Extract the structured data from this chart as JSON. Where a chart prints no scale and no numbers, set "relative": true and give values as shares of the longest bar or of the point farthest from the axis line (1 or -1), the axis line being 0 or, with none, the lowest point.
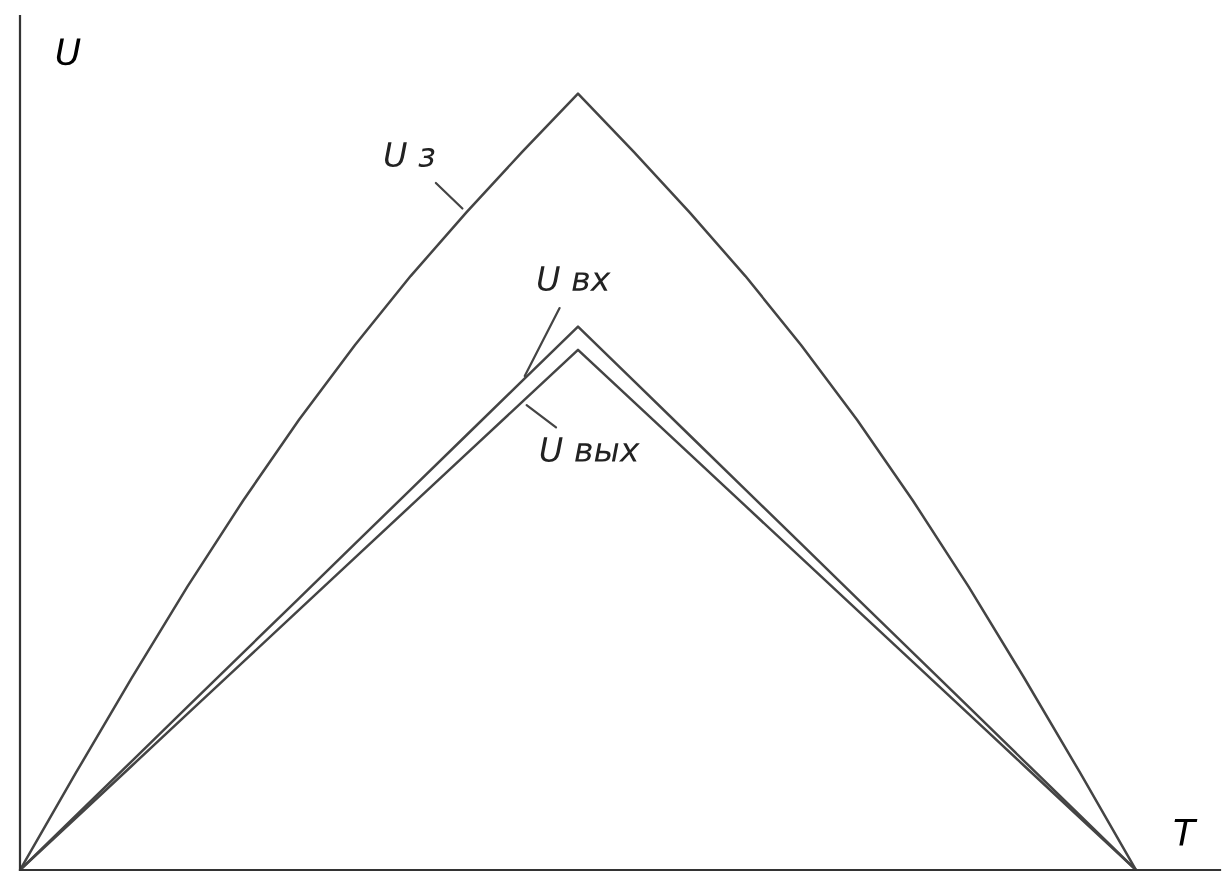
{
  "chart_data": {
    "type": "line",
    "relative": true,
    "xlabel": "T",
    "ylabel": "U",
    "tick_labels": false,
    "marker": "none",
    "line_style": "solid",
    "categories": [
      null,
      null,
      null,
      null,
      null,
      null,
      null,
      null,
      null,
      null,
      null,
      null,
      null,
      null,
      null,
      null,
      null,
      null,
      null,
      null,
      null
    ],
    "series": [
      {
        "name": "U з",
        "color": "#444444",
        "values": [
          0,
          0.125,
          0.247,
          0.365,
          0.476,
          0.58,
          0.676,
          0.765,
          0.847,
          0.925,
          1,
          0.925,
          0.847,
          0.765,
          0.676,
          0.58,
          0.476,
          0.365,
          0.247,
          0.125,
          0
        ]
      },
      {
        "name": "U вх",
        "color": "#444444",
        "values": [
          0,
          0.07,
          0.14,
          0.21,
          0.28,
          0.35,
          0.42,
          0.49,
          0.56,
          0.63,
          0.7,
          0.63,
          0.56,
          0.49,
          0.42,
          0.35,
          0.28,
          0.21,
          0.14,
          0.07,
          0
        ]
      },
      {
        "name": "U вых",
        "color": "#444444",
        "values": [
          0,
          0.067,
          0.134,
          0.201,
          0.268,
          0.335,
          0.402,
          0.469,
          0.536,
          0.603,
          0.67,
          0.603,
          0.536,
          0.469,
          0.402,
          0.335,
          0.268,
          0.201,
          0.134,
          0.067,
          0
        ]
      }
    ]
  }
}
